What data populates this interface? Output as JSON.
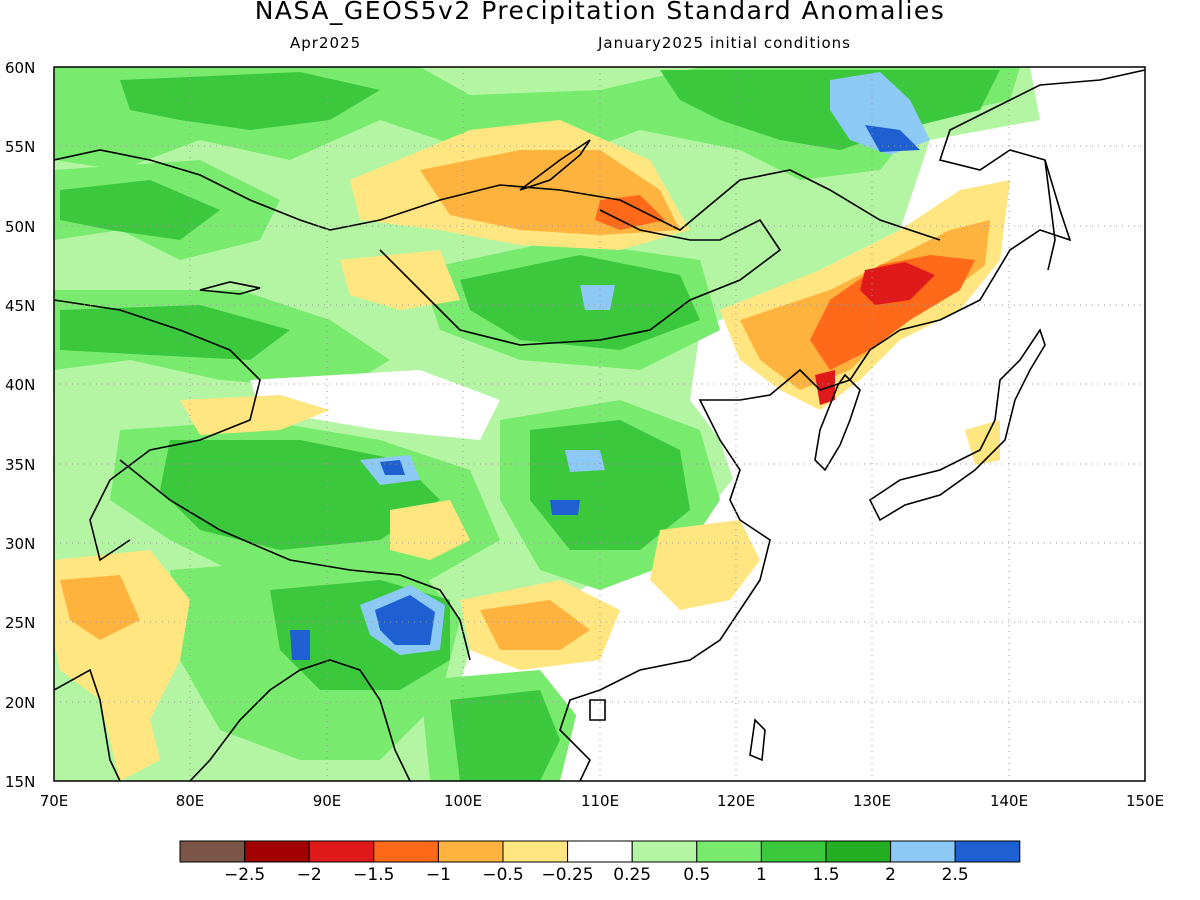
{
  "title": "NASA_GEOS5v2 Precipitation Standard Anomalies",
  "subtitle_left": "Apr2025",
  "subtitle_right": "January2025 initial conditions",
  "map": {
    "lon_range": [
      70,
      150
    ],
    "lat_range": [
      15,
      60
    ],
    "lon_ticks": [
      "70E",
      "80E",
      "90E",
      "100E",
      "110E",
      "120E",
      "130E",
      "140E",
      "150E"
    ],
    "lat_ticks": [
      "60N",
      "55N",
      "50N",
      "45N",
      "40N",
      "35N",
      "30N",
      "25N",
      "20N",
      "15N"
    ]
  },
  "colorbar": {
    "colors": [
      "#7b5548",
      "#a00000",
      "#e01a1a",
      "#ff6a1a",
      "#fdb33d",
      "#ffe680",
      "#ffffff",
      "#b4f5a4",
      "#78eb6e",
      "#3cc83c",
      "#23ad23",
      "#8ccaf5",
      "#1e5fd2"
    ],
    "labels": [
      "−2.5",
      "−2",
      "−1.5",
      "−1",
      "−0.5",
      "−0.25",
      "0.25",
      "0.5",
      "1",
      "1.5",
      "2",
      "2.5"
    ]
  },
  "colors": {
    "green_light": "#b4f5a4",
    "green": "#78eb6e",
    "green_mid": "#3cc83c",
    "green_dark": "#23ad23",
    "blue_light": "#8ccaf5",
    "blue": "#1e5fd2",
    "yellow": "#ffe680",
    "orange_light": "#fdb33d",
    "orange": "#ff6a1a",
    "red": "#e01a1a",
    "dark_red": "#a00000"
  }
}
